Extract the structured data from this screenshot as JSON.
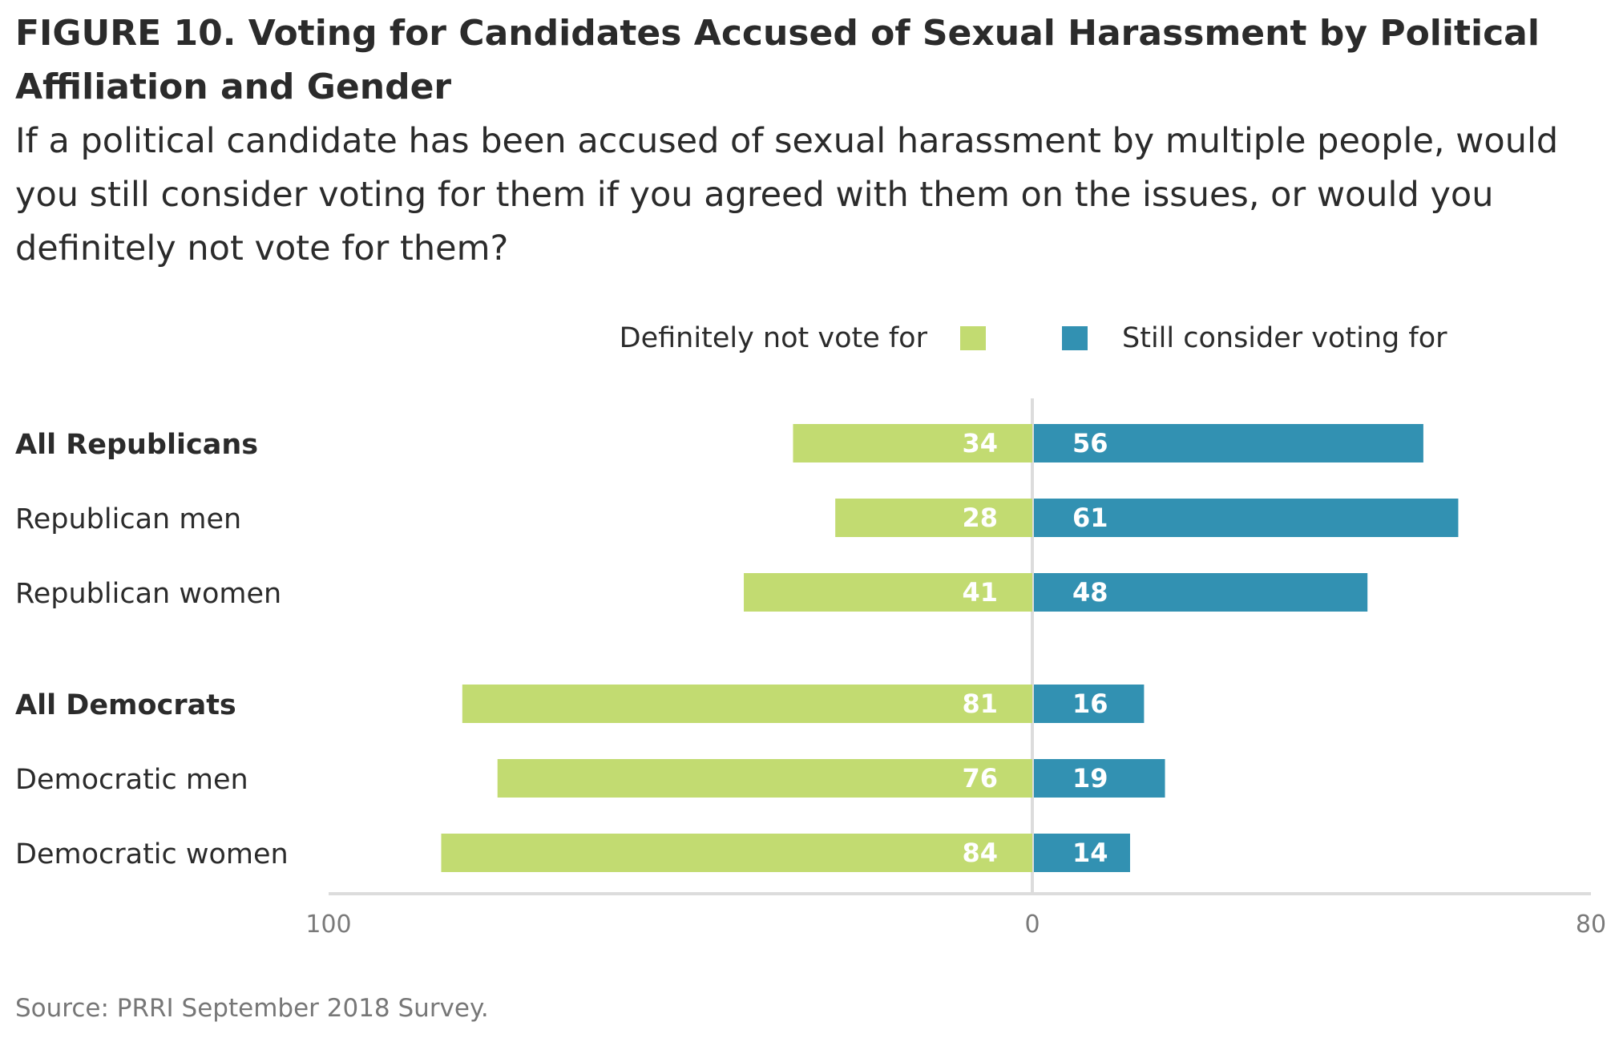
{
  "title": "FIGURE 10. Voting for Candidates Accused of Sexual Harassment by Political Affiliation and Gender",
  "subtitle": "If a political candidate has been accused of sexual harassment by multiple people, would you still consider voting for them if you agreed with them on the issues, or would you definitely not vote for them?",
  "source": "Source: PRRI September 2018 Survey.",
  "chart_data": {
    "type": "bar",
    "orientation": "horizontal-diverging",
    "categories": [
      "All Republicans",
      "Republican men",
      "Republican women",
      "All Democrats",
      "Democratic men",
      "Democratic women"
    ],
    "bold_categories": [
      "All Republicans",
      "All Democrats"
    ],
    "groups": [
      [
        "All Republicans",
        "Republican men",
        "Republican women"
      ],
      [
        "All Democrats",
        "Democratic men",
        "Democratic women"
      ]
    ],
    "series": [
      {
        "name": "Definitely not vote for",
        "color": "#c2db71",
        "direction": "left",
        "values": [
          34,
          28,
          41,
          81,
          76,
          84
        ]
      },
      {
        "name": "Still consider voting for",
        "color": "#3291b2",
        "direction": "right",
        "values": [
          56,
          61,
          48,
          16,
          19,
          14
        ]
      }
    ],
    "xlim_left": [
      0,
      100
    ],
    "xlim_right": [
      0,
      80
    ],
    "tick_labels": [
      "100",
      "0",
      "80"
    ],
    "legend_position": "top",
    "grid": false
  }
}
